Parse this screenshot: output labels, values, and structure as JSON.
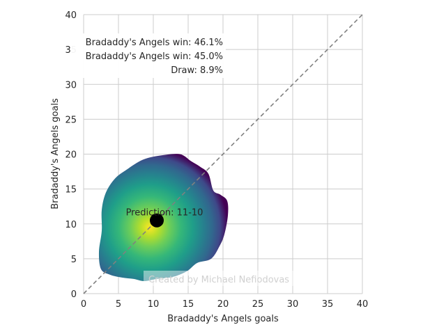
{
  "chart_data": {
    "type": "heatmap",
    "xlabel": "Bradaddy's Angels goals",
    "ylabel": "Bradaddy's Angels goals",
    "xlim": [
      0,
      40
    ],
    "ylim": [
      0,
      40
    ],
    "xticks": [
      0,
      5,
      10,
      15,
      20,
      25,
      30,
      35,
      40
    ],
    "yticks": [
      0,
      5,
      10,
      15,
      20,
      25,
      30,
      35,
      40
    ],
    "grid": true,
    "colormap": "viridis",
    "reference_line": {
      "from": [
        0,
        0
      ],
      "to": [
        40,
        40
      ],
      "style": "dashed",
      "color": "#808080"
    },
    "density_center": [
      9.5,
      9.5
    ],
    "density_outline": [
      [
        2.5,
        3.5
      ],
      [
        2.2,
        6
      ],
      [
        2.6,
        9
      ],
      [
        2.6,
        12
      ],
      [
        3.2,
        14.5
      ],
      [
        4.5,
        16.5
      ],
      [
        6.2,
        17.8
      ],
      [
        8.5,
        19.2
      ],
      [
        11,
        19.8
      ],
      [
        13.8,
        20
      ],
      [
        15.4,
        19
      ],
      [
        16.7,
        18.2
      ],
      [
        17.9,
        17.2
      ],
      [
        18.6,
        14.8
      ],
      [
        19.6,
        14.2
      ],
      [
        20.6,
        13.3
      ],
      [
        20.7,
        11.2
      ],
      [
        20.2,
        8.5
      ],
      [
        19.5,
        6.8
      ],
      [
        18.3,
        5
      ],
      [
        16.3,
        4.4
      ],
      [
        14.8,
        3.2
      ],
      [
        12.8,
        2.4
      ],
      [
        10.5,
        2.1
      ],
      [
        8.7,
        1.8
      ],
      [
        7.2,
        2.1
      ],
      [
        5.5,
        2.3
      ],
      [
        3.8,
        2.7
      ]
    ],
    "prediction": {
      "x": 10.5,
      "y": 10.5,
      "label": "Prediction: 11-10"
    },
    "annotations": [
      "Bradaddy's Angels win: 46.1%",
      "Bradaddy's Angels win: 45.0%",
      "Draw: 8.9%"
    ],
    "watermark": "Created by Michael Nefiodovas",
    "colors": {
      "reference_line": "#808080",
      "marker": "#000000",
      "grid": "#cccccc"
    }
  }
}
